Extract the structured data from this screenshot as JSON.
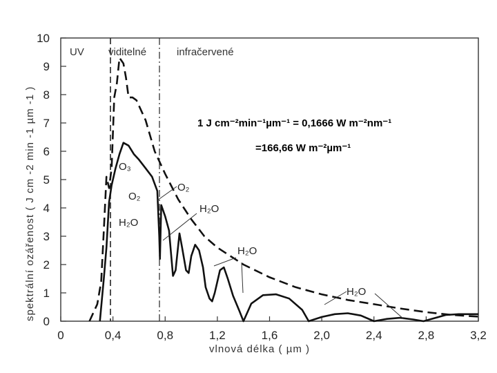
{
  "chart_data": {
    "type": "line",
    "xlabel": "vlnová délka ( µm )",
    "ylabel": "spektrální ozářenost ( J cm -2 min -1 µm -1 )",
    "xlim": [
      0,
      3.2
    ],
    "ylim": [
      0,
      10
    ],
    "x_ticks": [
      "0",
      "0,4",
      "0,8",
      "1,2",
      "1,6",
      "2,0",
      "2,4",
      "2,8",
      "3,2"
    ],
    "y_ticks": [
      "0",
      "1",
      "2",
      "3",
      "4",
      "5",
      "6",
      "7",
      "8",
      "9",
      "10"
    ],
    "grid": false,
    "regions": [
      {
        "label": "UV"
      },
      {
        "label": "viditelné"
      },
      {
        "label": "infračervené"
      }
    ],
    "region_boundaries": [
      0.38,
      0.76
    ],
    "series": [
      {
        "style": "dashed",
        "points": [
          [
            0.22,
            0.0
          ],
          [
            0.28,
            0.6
          ],
          [
            0.31,
            1.4
          ],
          [
            0.33,
            3.2
          ],
          [
            0.35,
            5.1
          ],
          [
            0.37,
            4.7
          ],
          [
            0.39,
            5.4
          ],
          [
            0.41,
            7.9
          ],
          [
            0.43,
            8.4
          ],
          [
            0.45,
            9.3
          ],
          [
            0.48,
            9.1
          ],
          [
            0.5,
            8.6
          ],
          [
            0.52,
            7.9
          ],
          [
            0.55,
            7.9
          ],
          [
            0.58,
            7.8
          ],
          [
            0.65,
            7.1
          ],
          [
            0.72,
            6.0
          ],
          [
            0.8,
            5.2
          ],
          [
            0.9,
            4.3
          ],
          [
            1.0,
            3.6
          ],
          [
            1.1,
            3.0
          ],
          [
            1.2,
            2.6
          ],
          [
            1.4,
            2.0
          ],
          [
            1.6,
            1.55
          ],
          [
            1.8,
            1.2
          ],
          [
            2.0,
            0.95
          ],
          [
            2.2,
            0.75
          ],
          [
            2.4,
            0.6
          ],
          [
            2.6,
            0.45
          ],
          [
            2.8,
            0.32
          ],
          [
            3.0,
            0.22
          ],
          [
            3.2,
            0.16
          ]
        ]
      },
      {
        "style": "solid",
        "points": [
          [
            0.3,
            0.0
          ],
          [
            0.32,
            1.0
          ],
          [
            0.33,
            1.5
          ],
          [
            0.35,
            2.6
          ],
          [
            0.37,
            4.2
          ],
          [
            0.39,
            4.8
          ],
          [
            0.42,
            5.4
          ],
          [
            0.45,
            5.9
          ],
          [
            0.48,
            6.3
          ],
          [
            0.52,
            6.2
          ],
          [
            0.56,
            5.9
          ],
          [
            0.6,
            5.7
          ],
          [
            0.65,
            5.4
          ],
          [
            0.7,
            5.1
          ],
          [
            0.74,
            4.6
          ],
          [
            0.755,
            3.0
          ],
          [
            0.76,
            2.2
          ],
          [
            0.77,
            4.1
          ],
          [
            0.8,
            3.7
          ],
          [
            0.83,
            3.2
          ],
          [
            0.86,
            1.6
          ],
          [
            0.88,
            1.8
          ],
          [
            0.91,
            3.1
          ],
          [
            0.93,
            2.6
          ],
          [
            0.96,
            1.8
          ],
          [
            0.98,
            1.7
          ],
          [
            1.0,
            2.3
          ],
          [
            1.03,
            2.7
          ],
          [
            1.06,
            2.5
          ],
          [
            1.09,
            1.9
          ],
          [
            1.11,
            1.2
          ],
          [
            1.14,
            0.8
          ],
          [
            1.16,
            0.7
          ],
          [
            1.18,
            1.0
          ],
          [
            1.22,
            1.8
          ],
          [
            1.25,
            1.9
          ],
          [
            1.28,
            1.5
          ],
          [
            1.32,
            0.9
          ],
          [
            1.37,
            0.35
          ],
          [
            1.4,
            0.0
          ],
          [
            1.46,
            0.62
          ],
          [
            1.55,
            0.92
          ],
          [
            1.65,
            0.95
          ],
          [
            1.75,
            0.8
          ],
          [
            1.85,
            0.4
          ],
          [
            1.9,
            0.0
          ],
          [
            2.0,
            0.15
          ],
          [
            2.1,
            0.25
          ],
          [
            2.2,
            0.28
          ],
          [
            2.3,
            0.2
          ],
          [
            2.4,
            0.0
          ],
          [
            2.5,
            0.08
          ],
          [
            2.6,
            0.12
          ],
          [
            2.7,
            0.06
          ],
          [
            2.78,
            0.0
          ],
          [
            2.82,
            0.05
          ],
          [
            2.95,
            0.22
          ],
          [
            3.05,
            0.25
          ],
          [
            3.2,
            0.25
          ]
        ]
      }
    ],
    "annotations": {
      "o3": "O₃",
      "o2_left": "O₂",
      "o2_right": "O₂",
      "h2o_left": "H₂O",
      "h2o_1": "H₂O",
      "h2o_2": "H₂O",
      "h2o_3": "H₂O"
    },
    "conversion_line1": "1 J cm⁻²min⁻¹µm⁻¹ = 0,1666 W m⁻²nm⁻¹",
    "conversion_line2": "=166,66 W m⁻²µm⁻¹"
  }
}
